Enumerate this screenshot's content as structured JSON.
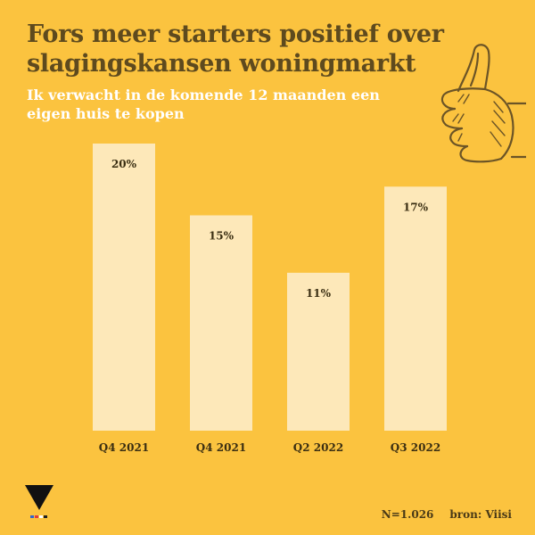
{
  "header": {
    "title_line1": "Fors meer starters positief over",
    "title_line2": "slagingskansen woningmarkt",
    "subtitle_line1": "Ik verwacht in de komende 12 maanden een",
    "subtitle_line2": "eigen huis te kopen"
  },
  "chart_data": {
    "type": "bar",
    "categories": [
      "Q4 2021",
      "Q4 2021",
      "Q2 2022",
      "Q3 2022"
    ],
    "values": [
      20,
      15,
      11,
      17
    ],
    "data_labels": [
      "20%",
      "15%",
      "11%",
      "17%"
    ],
    "title": "Fors meer starters positief over slagingskansen woningmarkt",
    "subtitle": "Ik verwacht in de komende 12 maanden een eigen huis te kopen",
    "xlabel": "",
    "ylabel": "",
    "ylim": [
      0,
      20
    ],
    "grid": false,
    "legend": "none",
    "bar_color": "#FDE8B9",
    "background_color": "#FBC33F",
    "title_color": "#5E4A1E"
  },
  "footer": {
    "sample_size": "N=1.026",
    "source": "bron: Viisi"
  },
  "decorations": {
    "thumb_icon": "thumbs-up-icon",
    "logo_icon": "v-logo-icon"
  }
}
